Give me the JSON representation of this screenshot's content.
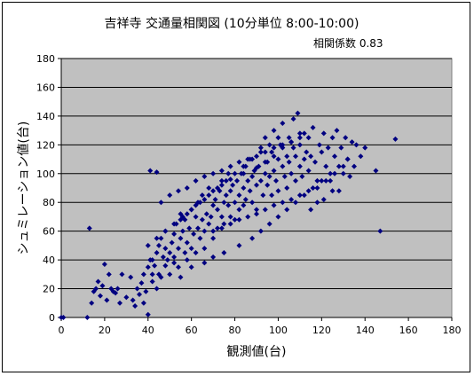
{
  "chart_data": {
    "type": "scatter",
    "title": "吉祥寺 交通量相関図 (10分単位 8:00-10:00)",
    "subtitle": "相関係数 0.83",
    "xlabel": "観測値(台)",
    "ylabel": "シュミレーション値(台)",
    "xlim": [
      0,
      180
    ],
    "ylim": [
      0,
      180
    ],
    "xticks": [
      "0",
      "20",
      "40",
      "60",
      "80",
      "100",
      "120",
      "140",
      "160",
      "180"
    ],
    "yticks": [
      "0",
      "20",
      "40",
      "60",
      "80",
      "100",
      "120",
      "140",
      "160",
      "180"
    ],
    "grid": "horizontal",
    "plot_background": "#c0c0c0",
    "marker_color": "#000080",
    "marker": "diamond",
    "series": [
      {
        "x": [
          0,
          1,
          12,
          13,
          14,
          15,
          16,
          17,
          18,
          19,
          20,
          21,
          22,
          23,
          24,
          25,
          26,
          27,
          28,
          30,
          32,
          33,
          34,
          35,
          36,
          37,
          38,
          38,
          39,
          40,
          40,
          41,
          42,
          42,
          43,
          44,
          44,
          45,
          45,
          46,
          46,
          47,
          48,
          48,
          49,
          50,
          50,
          51,
          52,
          52,
          53,
          54,
          54,
          55,
          55,
          56,
          57,
          57,
          58,
          58,
          59,
          60,
          60,
          61,
          62,
          62,
          63,
          63,
          64,
          65,
          65,
          66,
          66,
          67,
          68,
          68,
          69,
          70,
          70,
          71,
          72,
          72,
          73,
          74,
          74,
          75,
          75,
          76,
          77,
          77,
          78,
          78,
          79,
          80,
          80,
          81,
          82,
          82,
          83,
          84,
          84,
          85,
          85,
          86,
          87,
          87,
          88,
          88,
          89,
          90,
          90,
          91,
          92,
          92,
          93,
          94,
          94,
          95,
          95,
          96,
          97,
          97,
          98,
          98,
          99,
          100,
          100,
          101,
          102,
          102,
          103,
          104,
          104,
          105,
          105,
          106,
          107,
          107,
          108,
          108,
          109,
          110,
          110,
          111,
          112,
          112,
          113,
          114,
          114,
          115,
          116,
          117,
          118,
          119,
          120,
          121,
          122,
          123,
          124,
          125,
          126,
          127,
          128,
          129,
          130,
          131,
          132,
          133,
          134,
          135,
          136,
          138,
          140,
          145,
          147,
          154,
          41,
          44,
          42,
          52,
          48,
          55,
          60,
          66,
          70,
          75,
          82,
          88,
          92,
          96,
          100,
          104,
          108,
          112,
          116,
          120,
          124,
          128,
          132,
          55,
          58,
          62,
          66,
          70,
          74,
          78,
          84,
          90,
          94,
          98,
          102,
          106,
          110,
          115,
          118,
          121,
          125,
          70,
          74,
          78,
          82,
          86,
          90,
          94,
          98,
          102,
          106,
          110,
          114,
          118,
          122,
          126,
          130,
          46,
          50,
          54,
          58,
          62,
          66,
          70,
          74,
          78,
          82,
          86,
          90,
          94,
          98,
          102,
          106,
          110,
          40,
          44,
          48,
          52,
          56,
          60,
          64,
          68,
          72,
          76,
          80,
          84,
          88,
          92,
          96,
          100
        ],
        "y": [
          0,
          0,
          0,
          62,
          10,
          18,
          20,
          25,
          15,
          22,
          37,
          12,
          30,
          20,
          18,
          17,
          20,
          10,
          30,
          14,
          28,
          12,
          8,
          20,
          16,
          24,
          30,
          10,
          18,
          2,
          35,
          102,
          40,
          25,
          36,
          20,
          45,
          30,
          50,
          28,
          55,
          42,
          36,
          60,
          40,
          45,
          30,
          52,
          38,
          58,
          65,
          48,
          35,
          55,
          72,
          60,
          45,
          68,
          52,
          40,
          62,
          75,
          48,
          58,
          70,
          45,
          80,
          62,
          55,
          68,
          85,
          60,
          48,
          72,
          65,
          90,
          70,
          78,
          55,
          82,
          75,
          62,
          88,
          70,
          95,
          80,
          65,
          85,
          78,
          100,
          88,
          70,
          92,
          80,
          68,
          95,
          85,
          75,
          100,
          90,
          78,
          105,
          82,
          95,
          88,
          110,
          98,
          80,
          102,
          92,
          75,
          105,
          95,
          118,
          85,
          100,
          125,
          92,
          108,
          98,
          115,
          85,
          130,
          102,
          95,
          110,
          88,
          120,
          105,
          135,
          98,
          112,
          90,
          125,
          108,
          100,
          118,
          138,
          95,
          112,
          142,
          105,
          120,
          98,
          128,
          110,
          115,
          102,
          125,
          112,
          132,
          108,
          95,
          120,
          115,
          128,
          105,
          118,
          95,
          125,
          112,
          130,
          88,
          118,
          100,
          125,
          110,
          98,
          122,
          105,
          120,
          112,
          118,
          102,
          60,
          124,
          40,
          101,
          30,
          42,
          48,
          28,
          35,
          38,
          42,
          45,
          50,
          55,
          60,
          65,
          70,
          75,
          80,
          85,
          90,
          95,
          100,
          105,
          110,
          68,
          72,
          78,
          82,
          88,
          92,
          96,
          100,
          104,
          108,
          112,
          118,
          122,
          128,
          75,
          80,
          82,
          88,
          60,
          62,
          65,
          68,
          70,
          72,
          75,
          78,
          80,
          82,
          85,
          88,
          90,
          95,
          100,
          105,
          80,
          85,
          88,
          90,
          95,
          98,
          100,
          102,
          105,
          108,
          110,
          112,
          115,
          118,
          120,
          122,
          125,
          50,
          55,
          60,
          65,
          70,
          75,
          80,
          85,
          90,
          95,
          100,
          105,
          110,
          115,
          120,
          125
        ]
      }
    ]
  }
}
